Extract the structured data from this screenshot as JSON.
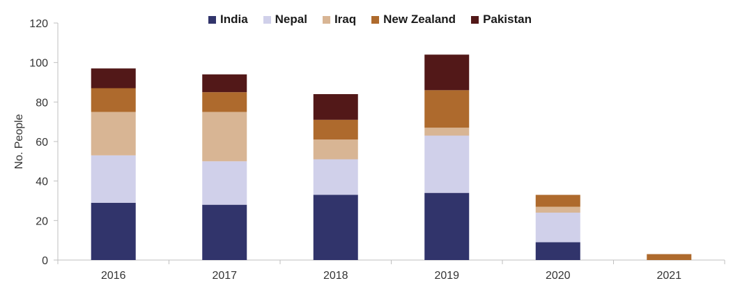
{
  "chart_data": {
    "type": "bar",
    "stacked": true,
    "title": "",
    "xlabel": "",
    "ylabel": "No. People",
    "ylim": [
      0,
      120
    ],
    "yticks": [
      0,
      20,
      40,
      60,
      80,
      100,
      120
    ],
    "grid": false,
    "legend_position": "top-center",
    "categories": [
      "2016",
      "2017",
      "2018",
      "2019",
      "2020",
      "2021"
    ],
    "series": [
      {
        "name": "India",
        "color": "#31346b",
        "values": [
          29,
          28,
          33,
          34,
          9,
          0
        ]
      },
      {
        "name": "Nepal",
        "color": "#d0d0ea",
        "values": [
          24,
          22,
          18,
          29,
          15,
          0
        ]
      },
      {
        "name": "Iraq",
        "color": "#d8b594",
        "values": [
          22,
          25,
          10,
          4,
          3,
          0
        ]
      },
      {
        "name": "New Zealand",
        "color": "#ae6a2d",
        "values": [
          12,
          10,
          10,
          19,
          6,
          3
        ]
      },
      {
        "name": "Pakistan",
        "color": "#521818",
        "values": [
          10,
          9,
          13,
          18,
          0,
          0
        ]
      }
    ]
  }
}
